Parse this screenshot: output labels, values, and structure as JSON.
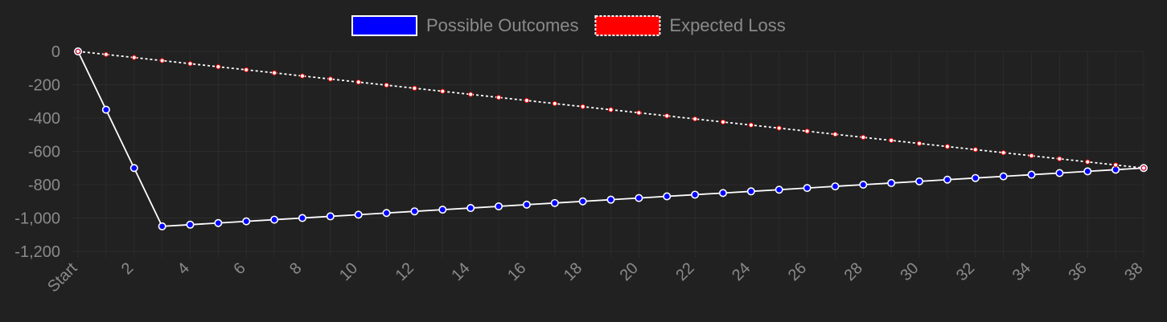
{
  "chart_data": {
    "type": "line",
    "title": "",
    "xlabel": "",
    "ylabel": "",
    "ylim": [
      -1200,
      0
    ],
    "xlim": [
      0,
      38
    ],
    "yticks": [
      0,
      -200,
      -400,
      -600,
      -800,
      -1000,
      -1200
    ],
    "ytick_labels": [
      "0",
      "-200",
      "-400",
      "-600",
      "-800",
      "-1,000",
      "-1,200"
    ],
    "xticks": [
      0,
      2,
      4,
      6,
      8,
      10,
      12,
      14,
      16,
      18,
      20,
      22,
      24,
      26,
      28,
      30,
      32,
      34,
      36,
      38
    ],
    "xtick_labels": [
      "Start",
      "2",
      "4",
      "6",
      "8",
      "10",
      "12",
      "14",
      "16",
      "18",
      "20",
      "22",
      "24",
      "26",
      "28",
      "30",
      "32",
      "34",
      "36",
      "38"
    ],
    "grid": true,
    "legend_position": "top-center",
    "x": [
      0,
      1,
      2,
      3,
      4,
      5,
      6,
      7,
      8,
      9,
      10,
      11,
      12,
      13,
      14,
      15,
      16,
      17,
      18,
      19,
      20,
      21,
      22,
      23,
      24,
      25,
      26,
      27,
      28,
      29,
      30,
      31,
      32,
      33,
      34,
      35,
      36,
      37,
      38
    ],
    "series": [
      {
        "name": "Possible Outcomes",
        "color": "#0000ff",
        "line_color": "#ffffff",
        "dashed": false,
        "values": [
          0,
          -350,
          -700,
          -1050,
          -1040,
          -1030,
          -1020,
          -1010,
          -1000,
          -990,
          -980,
          -970,
          -960,
          -950,
          -940,
          -930,
          -920,
          -910,
          -900,
          -890,
          -880,
          -870,
          -860,
          -850,
          -840,
          -830,
          -820,
          -810,
          -800,
          -790,
          -780,
          -770,
          -760,
          -750,
          -740,
          -730,
          -720,
          -710,
          -700
        ]
      },
      {
        "name": "Expected Loss",
        "color": "#ff0000",
        "line_color": "#ffffff",
        "dashed": true,
        "values": [
          0,
          -18.4,
          -36.8,
          -55.3,
          -73.7,
          -92.1,
          -110.5,
          -128.9,
          -147.4,
          -165.8,
          -184.2,
          -202.6,
          -221.1,
          -239.5,
          -257.9,
          -276.3,
          -294.7,
          -313.2,
          -331.6,
          -350,
          -368.4,
          -386.8,
          -405.3,
          -423.7,
          -442.1,
          -460.5,
          -478.9,
          -497.4,
          -515.8,
          -534.2,
          -552.6,
          -571.1,
          -589.5,
          -607.9,
          -626.3,
          -644.7,
          -663.2,
          -681.6,
          -700
        ]
      }
    ]
  }
}
